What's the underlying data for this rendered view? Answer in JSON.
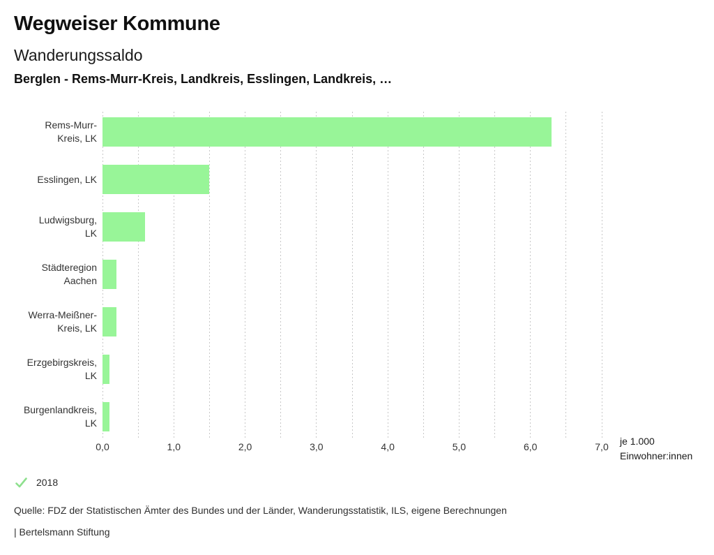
{
  "header": {
    "title": "Wegweiser Kommune",
    "subtitle": "Wanderungssaldo",
    "context": "Berglen - Rems-Murr-Kreis, Landkreis, Esslingen, Landkreis, …"
  },
  "chart_data": {
    "type": "bar",
    "orientation": "horizontal",
    "title": "Wanderungssaldo",
    "categories": [
      "Rems-Murr-Kreis, LK",
      "Esslingen, LK",
      "Ludwigsburg, LK",
      "Städteregion Aachen",
      "Werra-Meißner-Kreis, LK",
      "Erzgebirgskreis, LK",
      "Burgenlandkreis, LK"
    ],
    "category_label_lines": [
      [
        "Rems-Murr-",
        "Kreis, LK"
      ],
      [
        "Esslingen, LK"
      ],
      [
        "Ludwigsburg,",
        "LK"
      ],
      [
        "Städteregion",
        "Aachen"
      ],
      [
        "Werra-Meißner-",
        "Kreis, LK"
      ],
      [
        "Erzgebirgskreis,",
        "LK"
      ],
      [
        "Burgenlandkreis,",
        "LK"
      ]
    ],
    "series": [
      {
        "name": "2018",
        "values": [
          6.3,
          1.5,
          0.6,
          0.2,
          0.2,
          0.1,
          0.1
        ]
      }
    ],
    "values": [
      6.3,
      1.5,
      0.6,
      0.2,
      0.2,
      0.1,
      0.1
    ],
    "xlim": [
      0,
      7
    ],
    "x_tick_labels": [
      "0,0",
      "1,0",
      "2,0",
      "3,0",
      "4,0",
      "5,0",
      "6,0",
      "7,0"
    ],
    "x_major_step": 1.0,
    "x_minor_step": 0.5,
    "xlabel": "je 1.000\nEinwohner:innen",
    "grid": "vertical-dashed",
    "legend_position": "bottom-left",
    "bar_color": "#98f598"
  },
  "legend": {
    "label": "2018",
    "check_color": "#8ee08e"
  },
  "footer": {
    "source": "Quelle: FDZ der Statistischen Ämter des Bundes und der Länder, Wanderungsstatistik, ILS, eigene Berechnungen",
    "branding": "| Bertelsmann Stiftung"
  },
  "colors": {
    "bar": "#98f598",
    "grid": "#c7c7c7",
    "text": "#333333"
  }
}
